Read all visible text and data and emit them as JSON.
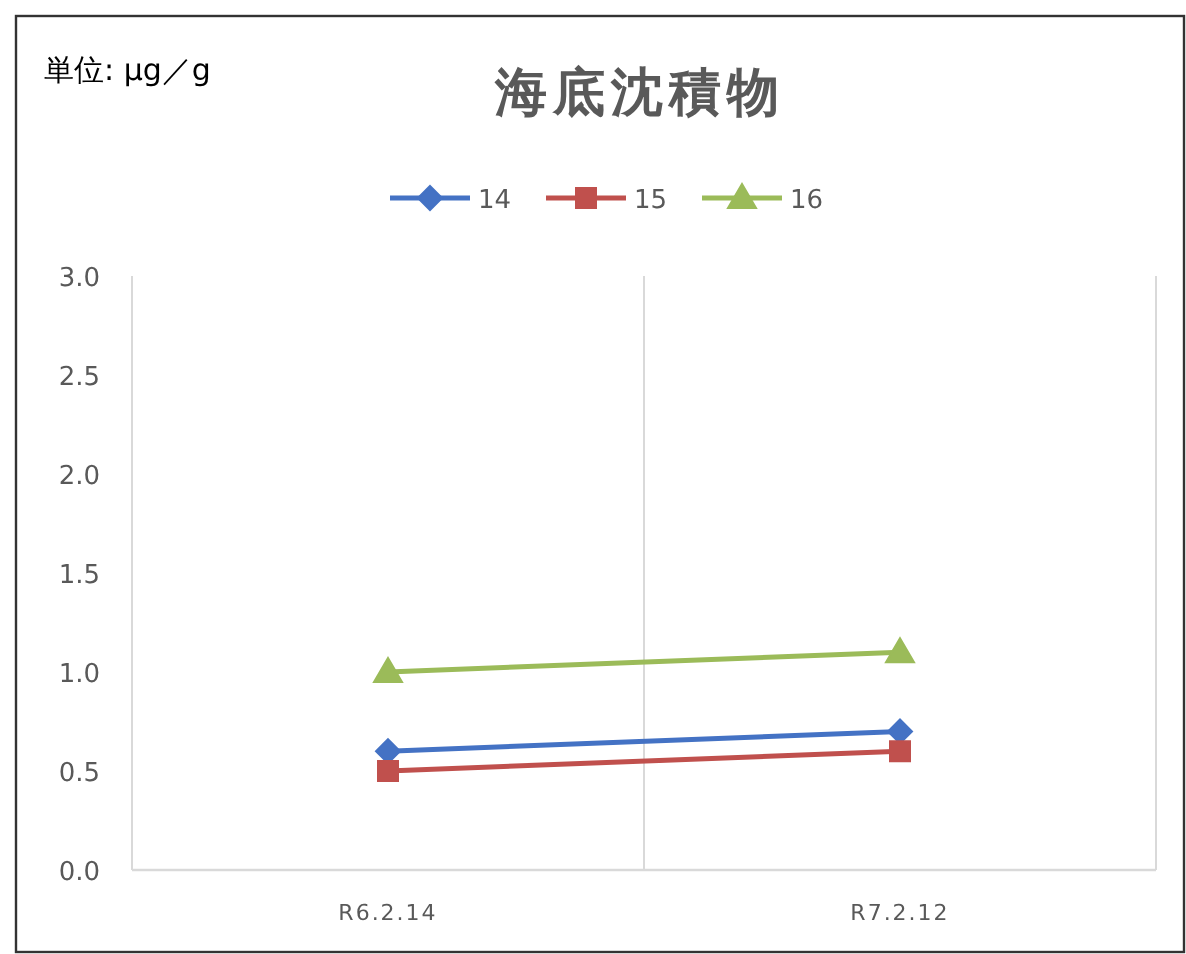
{
  "chart_data": {
    "type": "line",
    "title": "海底沈積物",
    "annotations": [
      "単位: μg／g"
    ],
    "categories": [
      "R6.2.14",
      "R7.2.12"
    ],
    "ylim": [
      0,
      3
    ],
    "yticks": [
      {
        "value": 0,
        "label": "0.0"
      },
      {
        "value": 0.5,
        "label": "0.5"
      },
      {
        "value": 1,
        "label": "1.0"
      },
      {
        "value": 1.5,
        "label": "1.5"
      },
      {
        "value": 2,
        "label": "2.0"
      },
      {
        "value": 2.5,
        "label": "2.5"
      },
      {
        "value": 3,
        "label": "3.0"
      }
    ],
    "grid": "x",
    "legend": "top",
    "series": [
      {
        "name": "14",
        "color": "#4472c4",
        "marker": "diamond",
        "values": [
          0.6,
          0.7
        ]
      },
      {
        "name": "15",
        "color": "#c0504d",
        "marker": "square",
        "values": [
          0.5,
          0.6
        ]
      },
      {
        "name": "16",
        "color": "#9bbb59",
        "marker": "triangle",
        "values": [
          1.0,
          1.1
        ]
      }
    ]
  }
}
